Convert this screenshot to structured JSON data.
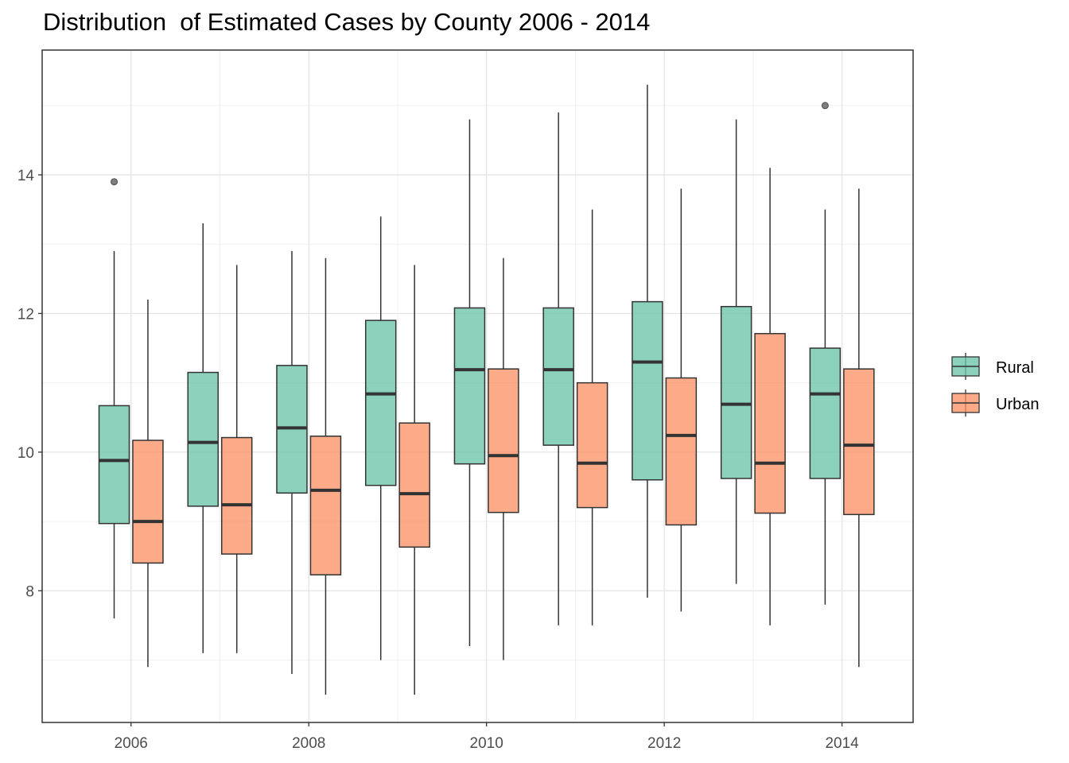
{
  "chart_data": {
    "type": "boxplot",
    "title": "Distribution  of Estimated Cases by County 2006 - 2014",
    "xlabel": "",
    "ylabel": "",
    "xlim": [
      2005,
      2014.8
    ],
    "ylim": [
      6.1,
      15.8
    ],
    "x_ticks": [
      2006,
      2008,
      2010,
      2012,
      2014
    ],
    "x_tick_labels": [
      "2006",
      "2008",
      "2010",
      "2012",
      "2014"
    ],
    "y_ticks": [
      8,
      10,
      12,
      14
    ],
    "y_tick_labels": [
      "8",
      "10",
      "12",
      "14"
    ],
    "grid": true,
    "legend_position": "right",
    "series": [
      {
        "name": "Rural",
        "color": "#66c2a5",
        "boxes": [
          {
            "year": 2006,
            "whisker_low": 7.6,
            "q1": 8.97,
            "median": 9.88,
            "q3": 10.67,
            "whisker_high": 12.9,
            "outliers": [
              13.9
            ]
          },
          {
            "year": 2007,
            "whisker_low": 7.1,
            "q1": 9.22,
            "median": 10.14,
            "q3": 11.15,
            "whisker_high": 13.3,
            "outliers": []
          },
          {
            "year": 2008,
            "whisker_low": 6.8,
            "q1": 9.41,
            "median": 10.35,
            "q3": 11.25,
            "whisker_high": 12.9,
            "outliers": []
          },
          {
            "year": 2009,
            "whisker_low": 7.0,
            "q1": 9.52,
            "median": 10.84,
            "q3": 11.9,
            "whisker_high": 13.4,
            "outliers": []
          },
          {
            "year": 2010,
            "whisker_low": 7.2,
            "q1": 9.83,
            "median": 11.19,
            "q3": 12.08,
            "whisker_high": 14.8,
            "outliers": []
          },
          {
            "year": 2011,
            "whisker_low": 7.5,
            "q1": 10.1,
            "median": 11.19,
            "q3": 12.08,
            "whisker_high": 14.9,
            "outliers": []
          },
          {
            "year": 2012,
            "whisker_low": 7.9,
            "q1": 9.6,
            "median": 11.3,
            "q3": 12.17,
            "whisker_high": 15.3,
            "outliers": []
          },
          {
            "year": 2013,
            "whisker_low": 8.1,
            "q1": 9.62,
            "median": 10.69,
            "q3": 12.1,
            "whisker_high": 14.8,
            "outliers": []
          },
          {
            "year": 2014,
            "whisker_low": 7.8,
            "q1": 9.62,
            "median": 10.84,
            "q3": 11.5,
            "whisker_high": 13.5,
            "outliers": [
              15.0
            ]
          }
        ]
      },
      {
        "name": "Urban",
        "color": "#fc8d62",
        "boxes": [
          {
            "year": 2006,
            "whisker_low": 6.9,
            "q1": 8.4,
            "median": 9.0,
            "q3": 10.17,
            "whisker_high": 12.2,
            "outliers": []
          },
          {
            "year": 2007,
            "whisker_low": 7.1,
            "q1": 8.53,
            "median": 9.24,
            "q3": 10.21,
            "whisker_high": 12.7,
            "outliers": []
          },
          {
            "year": 2008,
            "whisker_low": 6.5,
            "q1": 8.23,
            "median": 9.45,
            "q3": 10.23,
            "whisker_high": 12.8,
            "outliers": []
          },
          {
            "year": 2009,
            "whisker_low": 6.5,
            "q1": 8.63,
            "median": 9.4,
            "q3": 10.42,
            "whisker_high": 12.7,
            "outliers": []
          },
          {
            "year": 2010,
            "whisker_low": 7.0,
            "q1": 9.13,
            "median": 9.95,
            "q3": 11.2,
            "whisker_high": 12.8,
            "outliers": []
          },
          {
            "year": 2011,
            "whisker_low": 7.5,
            "q1": 9.2,
            "median": 9.84,
            "q3": 11.0,
            "whisker_high": 13.5,
            "outliers": []
          },
          {
            "year": 2012,
            "whisker_low": 7.7,
            "q1": 8.95,
            "median": 10.24,
            "q3": 11.07,
            "whisker_high": 13.8,
            "outliers": []
          },
          {
            "year": 2013,
            "whisker_low": 7.5,
            "q1": 9.12,
            "median": 9.84,
            "q3": 11.71,
            "whisker_high": 14.1,
            "outliers": []
          },
          {
            "year": 2014,
            "whisker_low": 6.9,
            "q1": 9.1,
            "median": 10.1,
            "q3": 11.2,
            "whisker_high": 13.8,
            "outliers": []
          }
        ]
      }
    ],
    "legend": [
      {
        "label": "Rural",
        "color": "#66c2a5"
      },
      {
        "label": "Urban",
        "color": "#fc8d62"
      }
    ]
  }
}
